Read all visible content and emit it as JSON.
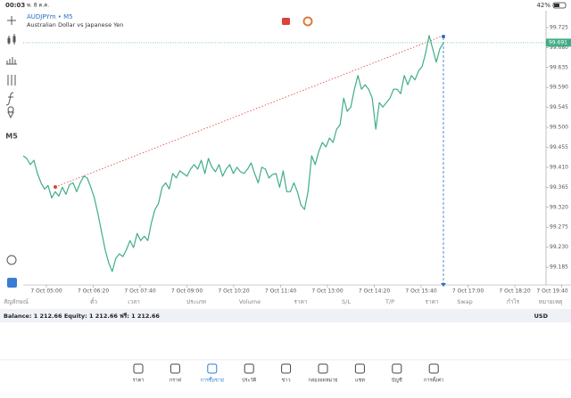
{
  "status_bar": {
    "time": "00:03",
    "date": "พ. 8 ต.ค.",
    "battery": "42%"
  },
  "toolbar": {
    "timeframe": "M5"
  },
  "chart": {
    "type": "line",
    "symbol": "AUDJPYm • M5",
    "description": "Australian Dollar vs Japanese Yen",
    "color": "#3fae84",
    "values": [
      99.436,
      99.43,
      99.416,
      99.426,
      99.396,
      99.375,
      99.361,
      99.369,
      99.341,
      99.355,
      99.345,
      99.365,
      99.349,
      99.371,
      99.375,
      99.355,
      99.375,
      99.39,
      99.386,
      99.365,
      99.341,
      99.305,
      99.265,
      99.225,
      99.195,
      99.175,
      99.205,
      99.215,
      99.209,
      99.225,
      99.245,
      99.229,
      99.261,
      99.245,
      99.255,
      99.245,
      99.285,
      99.315,
      99.329,
      99.365,
      99.375,
      99.361,
      99.396,
      99.386,
      99.402,
      99.396,
      99.39,
      99.406,
      99.416,
      99.406,
      99.426,
      99.396,
      99.43,
      99.41,
      99.4,
      99.416,
      99.39,
      99.406,
      99.416,
      99.396,
      99.41,
      99.4,
      99.396,
      99.406,
      99.42,
      99.396,
      99.375,
      99.41,
      99.406,
      99.386,
      99.394,
      99.396,
      99.365,
      99.402,
      99.355,
      99.355,
      99.375,
      99.355,
      99.325,
      99.315,
      99.355,
      99.436,
      99.416,
      99.446,
      99.466,
      99.456,
      99.476,
      99.466,
      99.496,
      99.506,
      99.566,
      99.536,
      99.546,
      99.586,
      99.617,
      99.586,
      99.596,
      99.586,
      99.566,
      99.496,
      99.556,
      99.546,
      99.556,
      99.566,
      99.586,
      99.586,
      99.576,
      99.617,
      99.596,
      99.617,
      99.607,
      99.627,
      99.637,
      99.667,
      99.707,
      99.677,
      99.647,
      99.677,
      99.691
    ],
    "ylim": [
      99.149,
      99.759
    ],
    "yticks": [
      99.725,
      {
        "value": 99.68,
        "label": "99.680"
      },
      99.635,
      {
        "value": 99.59,
        "label": "99.590"
      },
      99.545,
      {
        "value": 99.5,
        "label": "99.500"
      },
      99.455,
      {
        "value": 99.41,
        "label": "99.410"
      },
      99.365,
      {
        "value": 99.32,
        "label": "99.320"
      },
      99.275,
      {
        "value": 99.23,
        "label": "99.230"
      },
      99.185
    ],
    "xticks": [
      "7 Oct 05:00",
      "7 Oct 06:20",
      "7 Oct 07:40",
      "7 Oct 09:00",
      "7 Oct 10:20",
      "7 Oct 11:40",
      "7 Oct 13:00",
      "7 Oct 14:20",
      "7 Oct 15:40",
      "7 Oct 17:00",
      "7 Oct 18:20",
      "7 Oct 19:40"
    ],
    "current_price": 99.691
  },
  "table": {
    "columns": [
      "สัญลักษณ์",
      "ตั๋ว",
      "เวลา",
      "ประเภท",
      "Volume",
      "ราคา",
      "S/L",
      "T/P",
      "ราคา",
      "Swap",
      "กำไร",
      "หมายเหตุ"
    ]
  },
  "balance": {
    "text": "Balance: 1 212.66 Equity: 1 212.66 ฟรี: 1 212.66",
    "currency": "USD"
  },
  "tabs": [
    {
      "label": "ราคา"
    },
    {
      "label": "กราฟ"
    },
    {
      "label": "การซื้อขาย",
      "active": true
    },
    {
      "label": "ประวัติ"
    },
    {
      "label": "ข่าว"
    },
    {
      "label": "กล่องจดหมาย"
    },
    {
      "label": "แชท"
    },
    {
      "label": "บัญชี"
    },
    {
      "label": "การตั้งค่า"
    }
  ]
}
